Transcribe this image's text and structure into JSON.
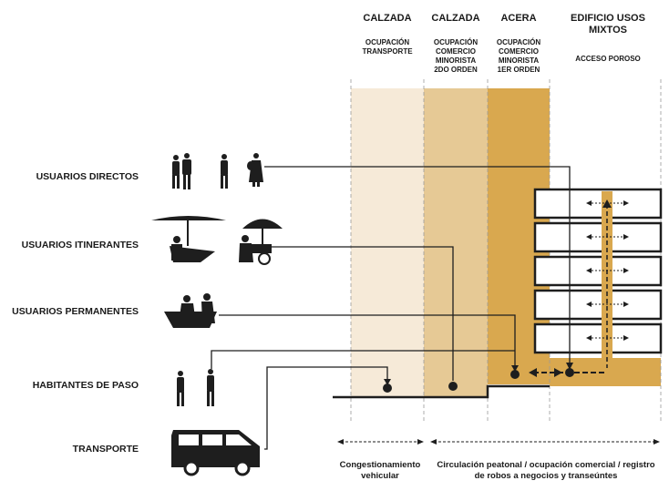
{
  "columns": [
    {
      "title": "CALZADA",
      "subtitle": "OCUPACIÓN\nTRANSPORTE"
    },
    {
      "title": "CALZADA",
      "subtitle": "OCUPACIÓN\nCOMERCIO\nMINORISTA\n2DO ORDEN"
    },
    {
      "title": "ACERA",
      "subtitle": "OCUPACIÓN\nCOMERCIO\nMINORISTA\n1ER ORDEN"
    },
    {
      "title": "EDIFICIO USOS\nMIXTOS",
      "subtitle": "ACCESO POROSO"
    }
  ],
  "rows": [
    {
      "label": "USUARIOS DIRECTOS"
    },
    {
      "label": "USUARIOS ITINERANTES"
    },
    {
      "label": "USUARIOS PERMANENTES"
    },
    {
      "label": "HABITANTES DE PASO"
    },
    {
      "label": "TRANSPORTE"
    }
  ],
  "bottom": {
    "left_caption": "Congestionamiento\nvehicular",
    "right_caption": "Circulación peatonal / ocupación comercial / registro\nde robos a negocios y transeúntes"
  },
  "colors": {
    "zone1": "#f6ead8",
    "zone2": "#e6c995",
    "zone3": "#d9a84f",
    "ink": "#1e1e1e"
  }
}
